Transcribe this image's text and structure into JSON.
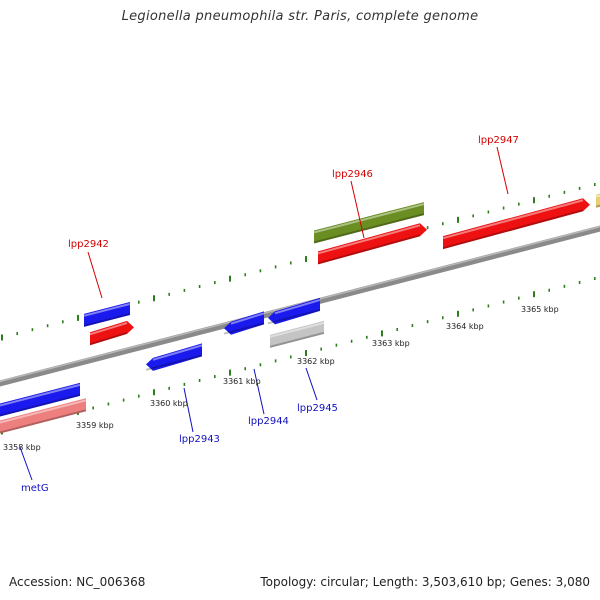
{
  "title": "Legionella pneumophila str. Paris, complete genome",
  "footer": {
    "accession": "Accession: NC_006368",
    "summary": "Topology: circular; Length: 3,503,610 bp; Genes: 3,080"
  },
  "colors": {
    "backbone": "#8a8a8a",
    "tick": "#2e7d1f",
    "forward_label": "#d40000",
    "reverse_label": "#1010c0",
    "blue": "#1a1aee",
    "red": "#ee1111",
    "pink": "#ee7f7f",
    "olive": "#6b8e23",
    "gray": "#c4c4c4",
    "yellow": "#e8d070"
  },
  "scale_labels": [
    {
      "kbp": 3358,
      "text": "3358 kbp"
    },
    {
      "kbp": 3359,
      "text": "3359 kbp"
    },
    {
      "kbp": 3360,
      "text": "3360 kbp"
    },
    {
      "kbp": 3361,
      "text": "3361 kbp"
    },
    {
      "kbp": 3362,
      "text": "3362 kbp"
    },
    {
      "kbp": 3363,
      "text": "3363 kbp"
    },
    {
      "kbp": 3364,
      "text": "3364 kbp"
    },
    {
      "kbp": 3365,
      "text": "3365 kbp"
    }
  ],
  "gene_labels": [
    {
      "text": "lpp2942",
      "strand": "forward"
    },
    {
      "text": "lpp2946",
      "strand": "forward"
    },
    {
      "text": "lpp2947",
      "strand": "forward"
    },
    {
      "text": "metG",
      "strand": "reverse"
    },
    {
      "text": "lpp2943",
      "strand": "reverse"
    },
    {
      "text": "lpp2944",
      "strand": "reverse"
    },
    {
      "text": "lpp2945",
      "strand": "reverse"
    }
  ]
}
